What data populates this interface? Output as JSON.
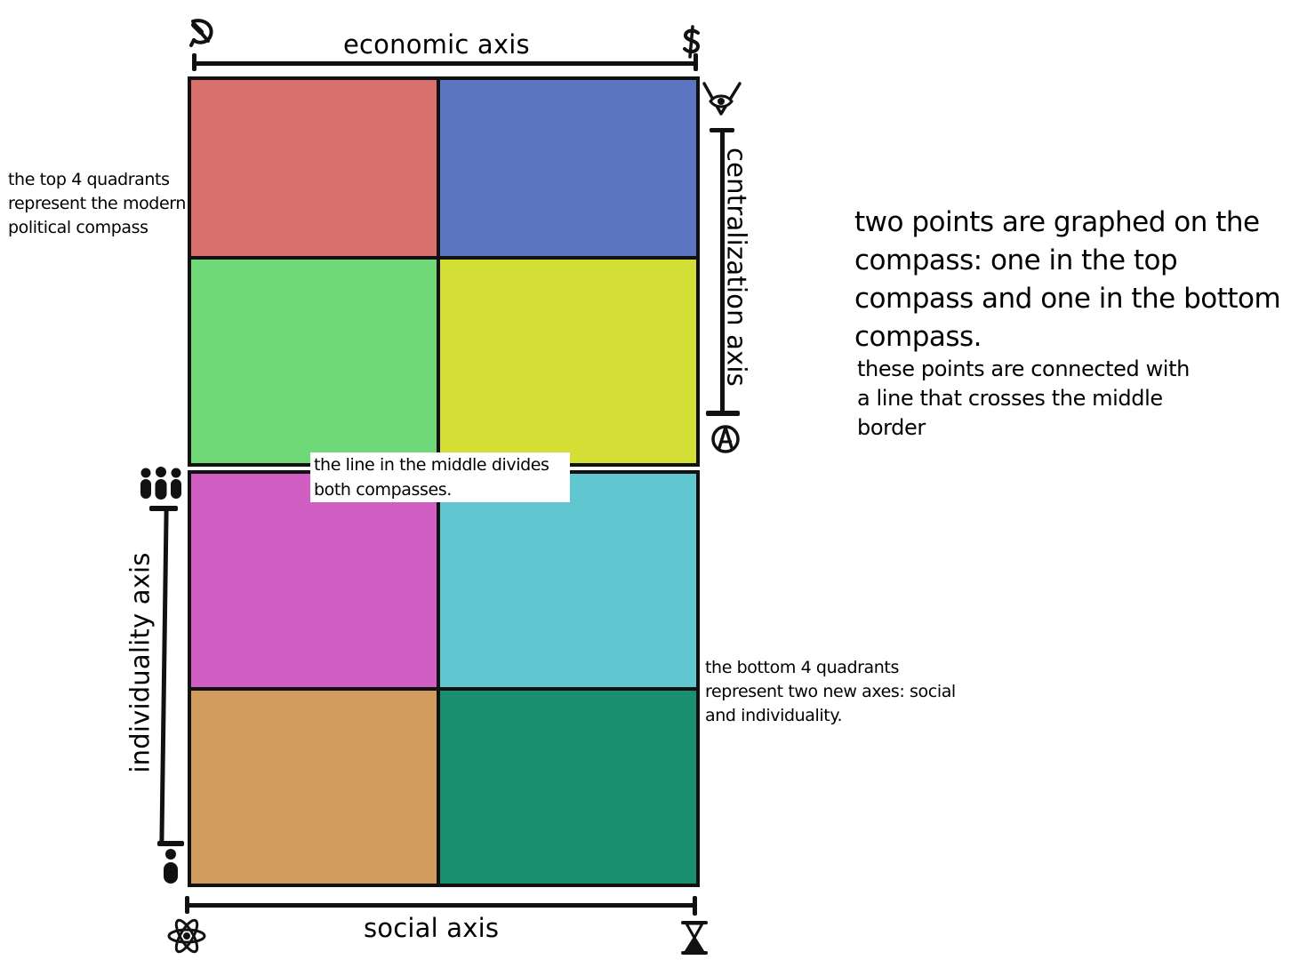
{
  "axes": {
    "economic": "economic axis",
    "centralization": "centralization axis",
    "individuality": "individuality axis",
    "social": "social axis"
  },
  "icons": {
    "economic_left": "hammer-sickle-icon",
    "economic_right": "dollar-icon",
    "centralization_top": "eye-of-providence-icon",
    "centralization_bottom": "anarchy-icon",
    "individuality_top": "group-people-icon",
    "individuality_bottom": "single-person-icon",
    "social_left": "atom-icon",
    "social_right": "hourglass-icon"
  },
  "notes": {
    "top_quadrants": [
      "the top 4 quadrants",
      "represent the modern",
      "political compass"
    ],
    "bottom_quadrants": [
      "the bottom 4 quadrants",
      "represent two new axes: social",
      "and individuality."
    ],
    "middle_line": [
      "the line in the middle divides",
      "both compasses."
    ],
    "points_heading": [
      "two points are graphed on the",
      "compass: one in the top",
      "compass and one in the bottom",
      "compass."
    ],
    "points_detail": [
      "these points are connected with",
      "a line that crosses the middle",
      "border"
    ]
  },
  "colors": {
    "top_left": "#d8716c",
    "top_right": "#5b75c0",
    "mid_top_left": "#6ed877",
    "mid_top_right": "#d4df36",
    "mid_bottom_left": "#d05ec3",
    "mid_bottom_right": "#60c7d1",
    "bottom_left": "#d29c5f",
    "bottom_right": "#198f70",
    "border": "#111111"
  }
}
